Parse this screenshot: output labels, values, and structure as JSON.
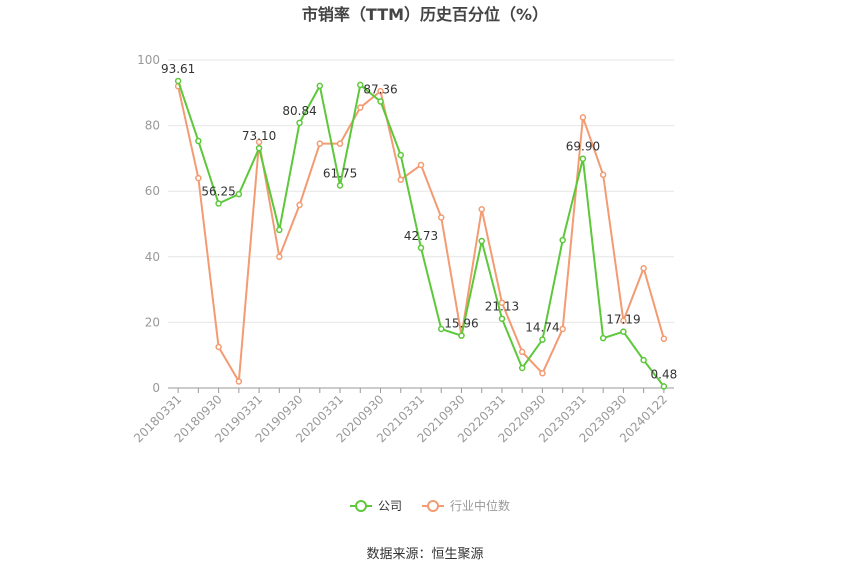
{
  "chart_data": {
    "type": "line",
    "title": "市销率（TTM）历史百分位（%）",
    "source": "数据来源：恒生聚源",
    "categories": [
      "20180331",
      null,
      "20180930",
      null,
      "20190331",
      null,
      "20190930",
      null,
      "20200331",
      null,
      "20200930",
      null,
      "20210331",
      null,
      "20210930",
      null,
      "20220331",
      null,
      "20220930",
      null,
      "20230331",
      null,
      "20230930",
      null,
      "20240122"
    ],
    "series": [
      {
        "name": "公司",
        "color": "#5cc83a",
        "values": [
          93.61,
          75.3,
          56.25,
          59.1,
          73.1,
          48.2,
          80.84,
          92.1,
          61.75,
          92.4,
          87.36,
          71.0,
          42.73,
          18.0,
          15.96,
          44.8,
          21.13,
          6.1,
          14.74,
          45.1,
          69.9,
          15.2,
          17.19,
          8.5,
          0.48
        ],
        "value_labels": [
          "93.61",
          null,
          "56.25",
          null,
          "73.10",
          null,
          "80.84",
          null,
          "61.75",
          null,
          "87.36",
          null,
          "42.73",
          null,
          "15.96",
          null,
          "21.13",
          null,
          "14.74",
          null,
          "69.90",
          null,
          "17.19",
          null,
          "0.48"
        ]
      },
      {
        "name": "行业中位数",
        "color": "#f39b72",
        "values": [
          92,
          64,
          12.5,
          2,
          75,
          40,
          55.8,
          74.5,
          74.5,
          85.5,
          90.5,
          63.5,
          68,
          52,
          16,
          54.5,
          26,
          11,
          4.5,
          18,
          82.5,
          65,
          20.5,
          36.5,
          15
        ]
      }
    ],
    "ylim": [
      0,
      100
    ],
    "yticks": [
      0,
      20,
      40,
      60,
      80,
      100
    ],
    "grid": true
  }
}
